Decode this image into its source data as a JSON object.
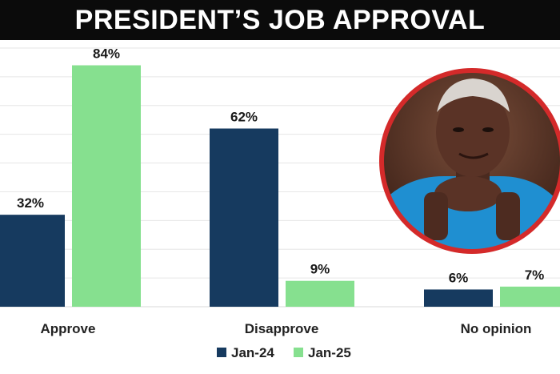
{
  "title": "PRESIDENT’S JOB APPROVAL",
  "chart_data": {
    "type": "bar",
    "categories": [
      "Approve",
      "Disapprove",
      "No opinion"
    ],
    "series": [
      {
        "name": "Jan-24",
        "values": [
          32,
          62,
          6
        ],
        "color": "#163a5f"
      },
      {
        "name": "Jan-25",
        "values": [
          84,
          9,
          7
        ],
        "color": "#86e08f"
      }
    ],
    "value_labels": [
      [
        "32%",
        "62%",
        "6%"
      ],
      [
        "84%",
        "9%",
        "7%"
      ]
    ],
    "ylim": [
      0,
      90
    ],
    "grid": true,
    "legend_position": "bottom-center"
  },
  "portrait": {
    "description_icon": "portrait-photo-icon",
    "ring_color": "#d42a2a"
  }
}
